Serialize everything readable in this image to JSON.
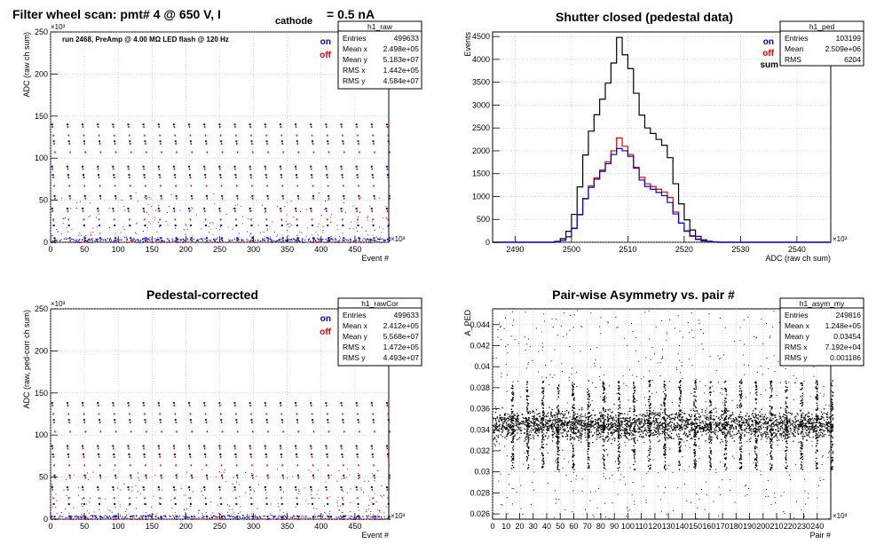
{
  "panels": {
    "raw": {
      "title_main": "Filter wheel scan: pmt#   4 @   650 V, I",
      "title_sub": "cathode",
      "title_tail": "= 0.5 nA",
      "note": "run 2468, PreAmp @ 4.00 MΩ  LED flash @  120 Hz",
      "xlabel": "Event #",
      "ylabel": "ADC (raw ch sum)",
      "xexp": "×10³",
      "yexp": "×10³",
      "legend": [
        "on",
        "off"
      ],
      "stats": {
        "name": "h1_raw",
        "rows": [
          [
            "Entries",
            "499633"
          ],
          [
            "Mean x",
            "2.498e+05"
          ],
          [
            "Mean y",
            "5.183e+07"
          ],
          [
            "RMS x",
            "1.442e+05"
          ],
          [
            "RMS y",
            "4.584e+07"
          ]
        ]
      }
    },
    "ped": {
      "title": "Shutter closed (pedestal data)",
      "xlabel": "ADC (raw ch sum)",
      "ylabel": "Events",
      "xexp": "×10³",
      "legend": [
        "on",
        "off",
        "sum"
      ],
      "stats": {
        "name": "h1_ped",
        "rows": [
          [
            "Entries",
            "103199"
          ],
          [
            "Mean",
            "2.509e+06"
          ],
          [
            "RMS",
            "6204"
          ]
        ]
      }
    },
    "cor": {
      "title": "Pedestal-corrected",
      "xlabel": "Event #",
      "ylabel": "ADC (raw, ped-corr ch sum)",
      "xexp": "×10³",
      "yexp": "×10³",
      "legend": [
        "on",
        "off"
      ],
      "stats": {
        "name": "h1_rawCor",
        "rows": [
          [
            "Entries",
            "499633"
          ],
          [
            "Mean x",
            "2.412e+05"
          ],
          [
            "Mean y",
            "5.568e+07"
          ],
          [
            "RMS x",
            "1.472e+05"
          ],
          [
            "RMS y",
            "4.493e+07"
          ]
        ]
      }
    },
    "asym": {
      "title": "Pair-wise Asymmetry vs. pair #",
      "xlabel": "Pair #",
      "ylabel": "A_PED",
      "xexp": "×10³",
      "stats": {
        "name": "h1_asym_my",
        "rows": [
          [
            "Entries",
            "249816"
          ],
          [
            "Mean x",
            "1.248e+05"
          ],
          [
            "Mean y",
            "0.03454"
          ],
          [
            "RMS x",
            "7.192e+04"
          ],
          [
            "RMS y",
            "0.001186"
          ]
        ]
      }
    }
  },
  "colors": {
    "on": "#0000cc",
    "off": "#ee0000",
    "sum": "#000000",
    "frame": "#000000",
    "grid": "#bbbbbb"
  },
  "chart_data": [
    {
      "type": "scatter",
      "xlim": [
        0,
        500
      ],
      "ylim": [
        0,
        250
      ],
      "xticks": [
        0,
        50,
        100,
        150,
        200,
        250,
        300,
        350,
        400,
        450
      ],
      "yticks": [
        0,
        50,
        100,
        150,
        200,
        250
      ],
      "grid": true,
      "legend_position": "top-right",
      "levels": [
        {
          "y": 140,
          "on": true,
          "off": true
        },
        {
          "y": 130,
          "on": false,
          "off": true
        },
        {
          "y": 120,
          "on": true,
          "off": true
        },
        {
          "y": 110,
          "on": false,
          "off": true
        },
        {
          "y": 90,
          "on": true,
          "off": true
        },
        {
          "y": 80,
          "on": true,
          "off": true
        },
        {
          "y": 70,
          "on": false,
          "off": true
        },
        {
          "y": 55,
          "on": true,
          "off": true
        },
        {
          "y": 40,
          "on": true,
          "off": true
        },
        {
          "y": 30,
          "on": false,
          "off": true
        },
        {
          "y": 20,
          "on": true,
          "off": false
        },
        {
          "y": 5,
          "on": true,
          "off": true
        }
      ],
      "cycle_period": 22.5
    },
    {
      "type": "line",
      "xlim": [
        2486,
        2546
      ],
      "ylim": [
        0,
        4600
      ],
      "xticks": [
        2490,
        2500,
        2510,
        2520,
        2530,
        2540
      ],
      "yticks": [
        0,
        500,
        1000,
        1500,
        2000,
        2500,
        3000,
        3500,
        4000,
        4500
      ],
      "grid": true,
      "legend_position": "top-right",
      "bin_width": 1,
      "x_start": 2496,
      "series": [
        {
          "name": "on",
          "values": [
            0,
            10,
            40,
            120,
            300,
            600,
            950,
            1200,
            1380,
            1550,
            1720,
            1920,
            2050,
            2000,
            1880,
            1620,
            1360,
            1220,
            1160,
            1090,
            1020,
            870,
            620,
            420,
            250,
            140,
            70,
            30,
            12,
            5,
            0
          ]
        },
        {
          "name": "off",
          "values": [
            0,
            10,
            40,
            120,
            310,
            610,
            960,
            1230,
            1410,
            1580,
            1760,
            2000,
            2280,
            2100,
            1920,
            1640,
            1420,
            1280,
            1220,
            1160,
            1100,
            980,
            660,
            420,
            240,
            130,
            60,
            25,
            10,
            4,
            0
          ]
        },
        {
          "name": "sum",
          "values": [
            0,
            20,
            80,
            240,
            610,
            1210,
            1910,
            2430,
            2790,
            3130,
            3480,
            3920,
            4480,
            4100,
            3800,
            3260,
            2780,
            2500,
            2380,
            2250,
            2120,
            1850,
            1280,
            840,
            490,
            270,
            130,
            55,
            22,
            9,
            0
          ]
        }
      ]
    },
    {
      "type": "scatter",
      "xlim": [
        0,
        500
      ],
      "ylim": [
        0,
        250
      ],
      "xticks": [
        0,
        50,
        100,
        150,
        200,
        250,
        300,
        350,
        400,
        450
      ],
      "yticks": [
        0,
        50,
        100,
        150,
        200,
        250
      ],
      "grid": true,
      "legend_position": "top-right",
      "levels": [
        {
          "y": 138,
          "on": true,
          "off": true
        },
        {
          "y": 128,
          "on": false,
          "off": true
        },
        {
          "y": 118,
          "on": true,
          "off": true
        },
        {
          "y": 107,
          "on": false,
          "off": true
        },
        {
          "y": 87,
          "on": true,
          "off": true
        },
        {
          "y": 77,
          "on": true,
          "off": true
        },
        {
          "y": 67,
          "on": false,
          "off": true
        },
        {
          "y": 52,
          "on": true,
          "off": true
        },
        {
          "y": 38,
          "on": true,
          "off": true
        },
        {
          "y": 28,
          "on": false,
          "off": true
        },
        {
          "y": 18,
          "on": true,
          "off": false
        },
        {
          "y": 3,
          "on": true,
          "off": true
        }
      ],
      "cycle_period": 22.5
    },
    {
      "type": "scatter",
      "xlim": [
        0,
        250
      ],
      "ylim": [
        0.0255,
        0.0455
      ],
      "xticks": [
        0,
        10,
        20,
        30,
        40,
        50,
        60,
        70,
        80,
        90,
        100,
        110,
        120,
        130,
        140,
        150,
        160,
        170,
        180,
        190,
        200,
        210,
        220,
        230,
        240
      ],
      "yticks": [
        0.026,
        0.028,
        0.03,
        0.032,
        0.034,
        0.036,
        0.038,
        0.04,
        0.042,
        0.044
      ],
      "grid": true,
      "band_center": 0.0345,
      "band_halfwidth": 0.0012,
      "spike_period": 11.25
    }
  ]
}
